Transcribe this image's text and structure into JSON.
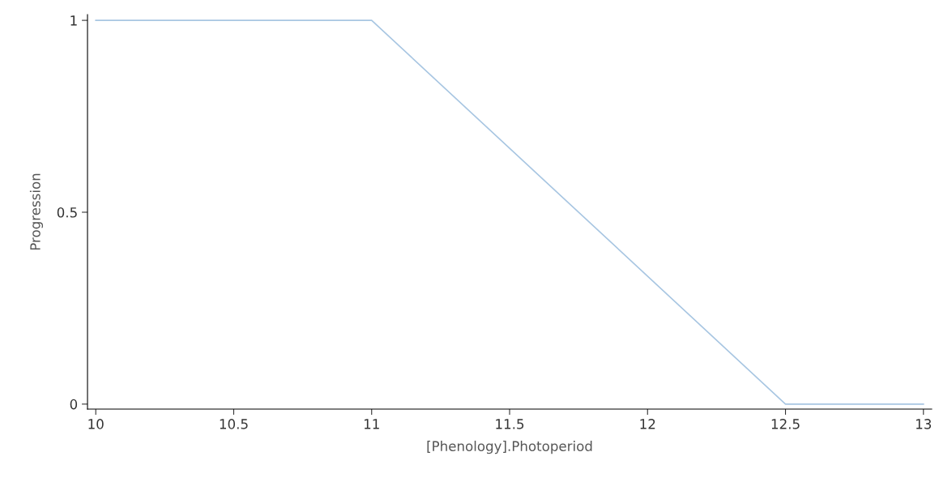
{
  "chart_data": {
    "type": "line",
    "xlabel": "[Phenology].Photoperiod",
    "ylabel": "Progression",
    "x": [
      10,
      11,
      12.5,
      13
    ],
    "series": [
      {
        "color": "#a8c6e2",
        "values": [
          1,
          1,
          0,
          0
        ]
      }
    ],
    "xlim": [
      9.97,
      13.03
    ],
    "ylim": [
      -0.013,
      1.015
    ],
    "xticks": [
      10,
      10.5,
      11,
      11.5,
      12,
      12.5,
      13
    ],
    "yticks": [
      0,
      0.5,
      1
    ],
    "grid": false,
    "marker": "none",
    "line_style": "solid"
  }
}
